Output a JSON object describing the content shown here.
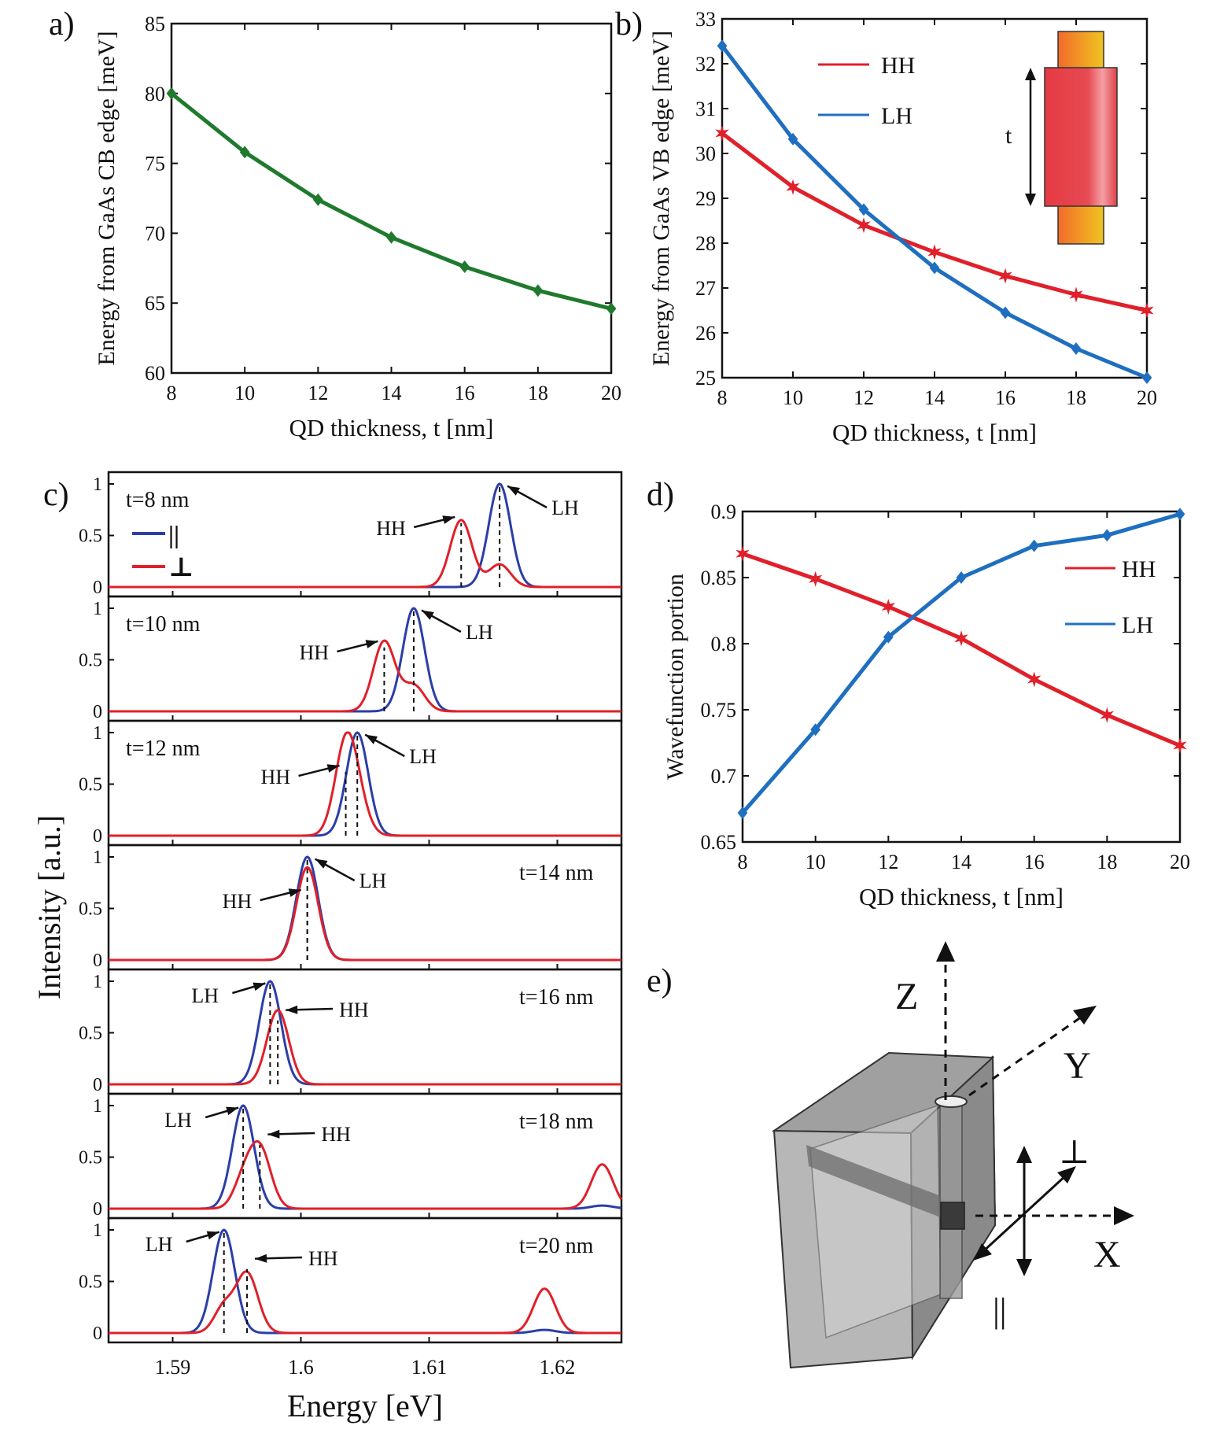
{
  "colors": {
    "green": "#1f7a2e",
    "red": "#e0202a",
    "blue": "#1f6fc0",
    "navy": "#2b3ea8",
    "axis": "#111111",
    "gold": "#f0c420",
    "orange": "#f26a2a"
  },
  "panel_labels": [
    "a)",
    "b)",
    "c)",
    "d)",
    "e)"
  ],
  "chart_data": [
    {
      "id": "a",
      "type": "line",
      "xlabel": "QD thickness, t [nm]",
      "ylabel": "Energy from GaAs CB edge [meV]",
      "xlim": [
        8,
        20
      ],
      "ylim": [
        60,
        85
      ],
      "xticks": [
        8,
        10,
        12,
        14,
        16,
        18,
        20
      ],
      "yticks": [
        60,
        65,
        70,
        75,
        80,
        85
      ],
      "series": [
        {
          "color": "#1f7a2e",
          "marker": "diamond",
          "x": [
            8,
            10,
            12,
            14,
            16,
            18,
            20
          ],
          "y": [
            80.0,
            75.8,
            72.4,
            69.7,
            67.6,
            65.9,
            64.6
          ]
        }
      ]
    },
    {
      "id": "b",
      "type": "line",
      "xlabel": "QD thickness, t [nm]",
      "ylabel": "Energy from GaAs VB edge [meV]",
      "xlim": [
        8,
        20
      ],
      "ylim": [
        25,
        33
      ],
      "xticks": [
        8,
        10,
        12,
        14,
        16,
        18,
        20
      ],
      "yticks": [
        25,
        26,
        27,
        28,
        29,
        30,
        31,
        32,
        33
      ],
      "legend_position": "top-center",
      "inset_label": "t",
      "series": [
        {
          "name": "HH",
          "color": "#e0202a",
          "marker": "star",
          "x": [
            8,
            10,
            12,
            14,
            16,
            18,
            20
          ],
          "y": [
            30.45,
            29.25,
            28.4,
            27.8,
            27.27,
            26.85,
            26.5
          ]
        },
        {
          "name": "LH",
          "color": "#1f6fc0",
          "marker": "diamond",
          "x": [
            8,
            10,
            12,
            14,
            16,
            18,
            20
          ],
          "y": [
            32.4,
            30.32,
            28.75,
            27.45,
            26.45,
            25.65,
            25.0
          ]
        }
      ]
    },
    {
      "id": "c",
      "type": "line",
      "xlabel": "Energy [eV]",
      "ylabel": "Intensity [a.u.]",
      "xlim": [
        1.585,
        1.625
      ],
      "xticks": [
        1.59,
        1.6,
        1.61,
        1.62
      ],
      "xticklabels": [
        "1.59",
        "1.6",
        "1.61",
        "1.62"
      ],
      "yticks": [
        0,
        0.5,
        1
      ],
      "legend": [
        {
          "name": "||",
          "color": "#2b3ea8"
        },
        {
          "name": "⊥",
          "color": "#e0202a"
        }
      ],
      "subplots": [
        {
          "label": "t=8 nm",
          "hh_peak": 1.6125,
          "lh_peak": 1.6155,
          "hh_label": "HH",
          "lh_label": "LH"
        },
        {
          "label": "t=10 nm",
          "hh_peak": 1.6065,
          "lh_peak": 1.6088,
          "hh_label": "HH",
          "lh_label": "LH"
        },
        {
          "label": "t=12 nm",
          "hh_peak": 1.6035,
          "lh_peak": 1.6044,
          "hh_label": "HH",
          "lh_label": "LH"
        },
        {
          "label": "t=14 nm",
          "hh_peak": 1.6005,
          "lh_peak": 1.6005,
          "hh_label": "HH",
          "lh_label": "LH"
        },
        {
          "label": "t=16 nm",
          "hh_peak": 1.5982,
          "lh_peak": 1.5976,
          "hh_label": "HH",
          "lh_label": "LH"
        },
        {
          "label": "t=18 nm",
          "hh_peak": 1.5968,
          "lh_peak": 1.5955,
          "hh_label": "HH",
          "lh_label": "LH",
          "extra_red_peak": 1.6235
        },
        {
          "label": "t=20 nm",
          "hh_peak": 1.5958,
          "lh_peak": 1.594,
          "hh_label": "HH",
          "lh_label": "LH",
          "extra_red_peak": 1.619
        }
      ]
    },
    {
      "id": "d",
      "type": "line",
      "xlabel": "QD thickness, t [nm]",
      "ylabel": "Wavefunction portion",
      "xlim": [
        8,
        20
      ],
      "ylim": [
        0.65,
        0.9
      ],
      "xticks": [
        8,
        10,
        12,
        14,
        16,
        18,
        20
      ],
      "yticks": [
        0.65,
        0.7,
        0.75,
        0.8,
        0.85,
        0.9
      ],
      "legend_position": "right",
      "series": [
        {
          "name": "HH",
          "color": "#e0202a",
          "marker": "star",
          "x": [
            8,
            10,
            12,
            14,
            16,
            18,
            20
          ],
          "y": [
            0.868,
            0.849,
            0.828,
            0.804,
            0.773,
            0.746,
            0.723
          ]
        },
        {
          "name": "LH",
          "color": "#1f6fc0",
          "marker": "diamond",
          "x": [
            8,
            10,
            12,
            14,
            16,
            18,
            20
          ],
          "y": [
            0.672,
            0.735,
            0.805,
            0.85,
            0.874,
            0.882,
            0.898
          ]
        }
      ]
    }
  ],
  "schematic": {
    "z_label": "Z",
    "y_label": "Y",
    "x_label": "X",
    "perp_label": "⊥",
    "par_label": "||"
  }
}
